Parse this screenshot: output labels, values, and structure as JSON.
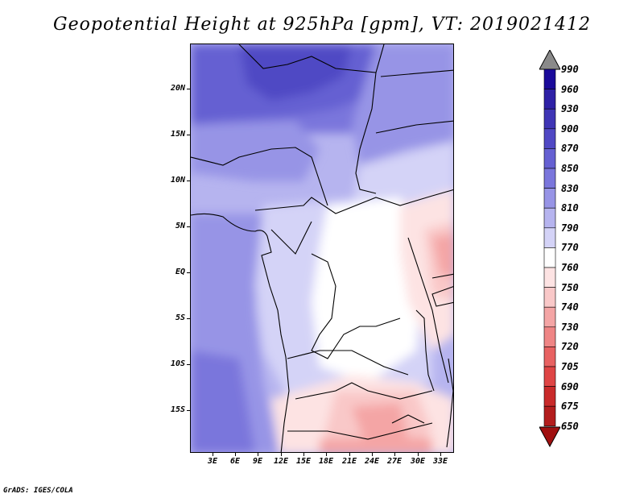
{
  "title": "Geopotential Height at 925hPa [gpm], VT: 2019021412",
  "credit": "GrADS: IGES/COLA",
  "map": {
    "lat_labels": [
      "20N",
      "15N",
      "10N",
      "5N",
      "EQ",
      "5S",
      "10S",
      "15S"
    ],
    "lon_labels": [
      "3E",
      "6E",
      "9E",
      "12E",
      "15E",
      "18E",
      "21E",
      "24E",
      "27E",
      "30E",
      "33E"
    ]
  },
  "colorbar": {
    "labels": [
      "990",
      "960",
      "930",
      "900",
      "870",
      "850",
      "830",
      "810",
      "790",
      "770",
      "760",
      "750",
      "740",
      "730",
      "720",
      "705",
      "690",
      "675",
      "650"
    ],
    "colors": [
      "#8a8a8a",
      "#1a0a9a",
      "#2e21a6",
      "#3f35b5",
      "#5048c4",
      "#6560d2",
      "#7a76dc",
      "#9794e6",
      "#b6b4ef",
      "#d4d3f7",
      "#ffffff",
      "#fde3e3",
      "#f9c8c8",
      "#f4a5a5",
      "#ef8585",
      "#e86262",
      "#df4545",
      "#c92a2a",
      "#b31d1d",
      "#a01010"
    ]
  }
}
